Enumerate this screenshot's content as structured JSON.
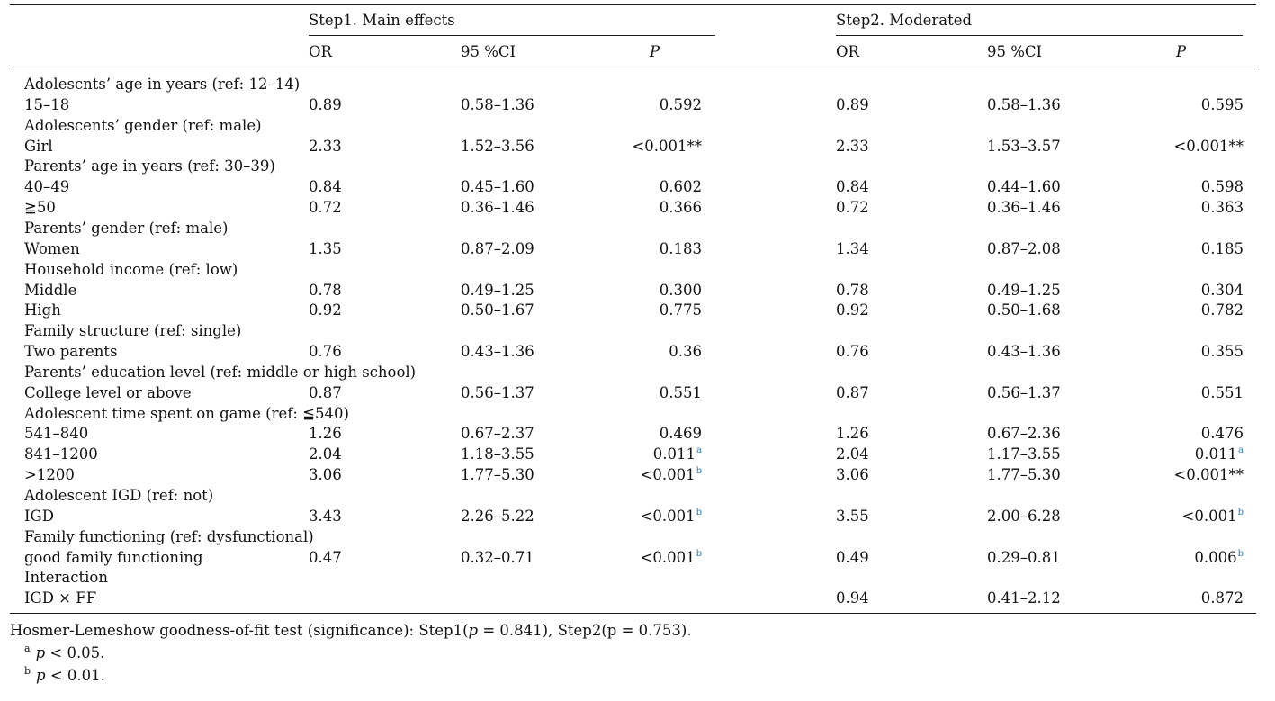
{
  "table": {
    "group_headers": {
      "step1": "Step1. Main effects",
      "step2": "Step2. Moderated"
    },
    "col_headers": {
      "or": "OR",
      "ci": "95 %CI",
      "p": "P"
    },
    "rows": [
      {
        "kind": "header",
        "label": "Adolescnts’ age in years (ref: 12–14)"
      },
      {
        "kind": "data",
        "label": "15–18",
        "s1": {
          "or": "0.89",
          "ci": "0.58–1.36",
          "p": "0.592",
          "sup": ""
        },
        "s2": {
          "or": "0.89",
          "ci": "0.58–1.36",
          "p": "0.595",
          "sup": ""
        }
      },
      {
        "kind": "header",
        "label": "Adolescents’ gender (ref: male)"
      },
      {
        "kind": "data",
        "label": "Girl",
        "s1": {
          "or": "2.33",
          "ci": "1.52–3.56",
          "p": "<0.001**",
          "sup": ""
        },
        "s2": {
          "or": "2.33",
          "ci": "1.53–3.57",
          "p": "<0.001**",
          "sup": ""
        }
      },
      {
        "kind": "header",
        "label": "Parents’ age in years (ref: 30–39)"
      },
      {
        "kind": "data",
        "label": "40–49",
        "s1": {
          "or": "0.84",
          "ci": "0.45–1.60",
          "p": "0.602",
          "sup": ""
        },
        "s2": {
          "or": "0.84",
          "ci": "0.44–1.60",
          "p": "0.598",
          "sup": ""
        }
      },
      {
        "kind": "data",
        "label": "≧50",
        "s1": {
          "or": "0.72",
          "ci": "0.36–1.46",
          "p": "0.366",
          "sup": ""
        },
        "s2": {
          "or": "0.72",
          "ci": "0.36–1.46",
          "p": "0.363",
          "sup": ""
        }
      },
      {
        "kind": "header",
        "label": "Parents’ gender (ref: male)"
      },
      {
        "kind": "data",
        "label": "Women",
        "s1": {
          "or": "1.35",
          "ci": "0.87–2.09",
          "p": "0.183",
          "sup": ""
        },
        "s2": {
          "or": "1.34",
          "ci": "0.87–2.08",
          "p": "0.185",
          "sup": ""
        }
      },
      {
        "kind": "header",
        "label": "Household income (ref: low)"
      },
      {
        "kind": "data",
        "label": "Middle",
        "s1": {
          "or": "0.78",
          "ci": "0.49–1.25",
          "p": "0.300",
          "sup": ""
        },
        "s2": {
          "or": "0.78",
          "ci": "0.49–1.25",
          "p": "0.304",
          "sup": ""
        }
      },
      {
        "kind": "data",
        "label": "High",
        "s1": {
          "or": "0.92",
          "ci": "0.50–1.67",
          "p": "0.775",
          "sup": ""
        },
        "s2": {
          "or": "0.92",
          "ci": "0.50–1.68",
          "p": "0.782",
          "sup": ""
        }
      },
      {
        "kind": "header",
        "label": "Family structure (ref: single)"
      },
      {
        "kind": "data",
        "label": "Two parents",
        "s1": {
          "or": "0.76",
          "ci": "0.43–1.36",
          "p": "0.36",
          "sup": ""
        },
        "s2": {
          "or": "0.76",
          "ci": "0.43–1.36",
          "p": "0.355",
          "sup": ""
        }
      },
      {
        "kind": "header",
        "label": "Parents’ education level (ref: middle or high school)"
      },
      {
        "kind": "data",
        "label": "College level or above",
        "s1": {
          "or": "0.87",
          "ci": "0.56–1.37",
          "p": "0.551",
          "sup": ""
        },
        "s2": {
          "or": "0.87",
          "ci": "0.56–1.37",
          "p": "0.551",
          "sup": ""
        }
      },
      {
        "kind": "header",
        "label": "Adolescent time spent on game (ref: ≦540)"
      },
      {
        "kind": "data",
        "label": "541–840",
        "s1": {
          "or": "1.26",
          "ci": "0.67–2.37",
          "p": "0.469",
          "sup": ""
        },
        "s2": {
          "or": "1.26",
          "ci": "0.67–2.36",
          "p": "0.476",
          "sup": ""
        }
      },
      {
        "kind": "data",
        "label": "841–1200",
        "s1": {
          "or": "2.04",
          "ci": "1.18–3.55",
          "p": "0.011",
          "sup": "a"
        },
        "s2": {
          "or": "2.04",
          "ci": "1.17–3.55",
          "p": "0.011",
          "sup": "a"
        }
      },
      {
        "kind": "data",
        "label": ">1200",
        "s1": {
          "or": "3.06",
          "ci": "1.77–5.30",
          "p": "<0.001",
          "sup": "b"
        },
        "s2": {
          "or": "3.06",
          "ci": "1.77–5.30",
          "p": "<0.001**",
          "sup": ""
        }
      },
      {
        "kind": "header",
        "label": "Adolescent IGD (ref: not)"
      },
      {
        "kind": "data",
        "label": "IGD",
        "s1": {
          "or": "3.43",
          "ci": "2.26–5.22",
          "p": "<0.001",
          "sup": "b"
        },
        "s2": {
          "or": "3.55",
          "ci": "2.00–6.28",
          "p": "<0.001",
          "sup": "b"
        }
      },
      {
        "kind": "header",
        "label": "Family functioning (ref: dysfunctional)"
      },
      {
        "kind": "data",
        "label": "good family functioning",
        "s1": {
          "or": "0.47",
          "ci": "0.32–0.71",
          "p": "<0.001",
          "sup": "b"
        },
        "s2": {
          "or": "0.49",
          "ci": "0.29–0.81",
          "p": "0.006",
          "sup": "b"
        }
      },
      {
        "kind": "header",
        "label": "Interaction"
      },
      {
        "kind": "data",
        "label": "IGD × FF",
        "s1": {
          "or": "",
          "ci": "",
          "p": "",
          "sup": ""
        },
        "s2": {
          "or": "0.94",
          "ci": "0.41–2.12",
          "p": "0.872",
          "sup": ""
        }
      }
    ]
  },
  "footnotes": {
    "hosmer_pre": "Hosmer-Lemeshow goodness-of-fit test (significance): Step1(",
    "hosmer_p_var": "p",
    "hosmer_mid": " = 0.841), Step2(p = 0.753).",
    "note_a_mark": "a",
    "note_a_var": "p",
    "note_a_text": " < 0.05.",
    "note_b_mark": "b",
    "note_b_var": "p",
    "note_b_text": " < 0.01."
  }
}
